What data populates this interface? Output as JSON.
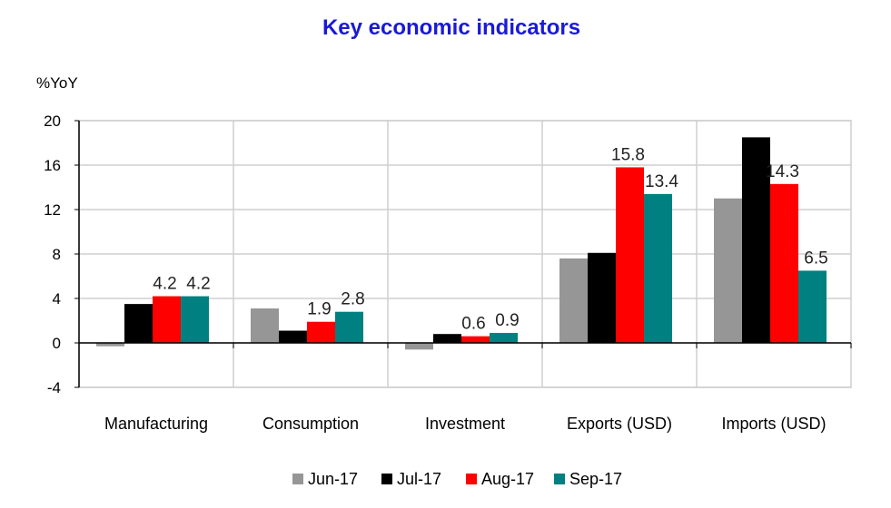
{
  "chart_data": {
    "type": "bar",
    "title": "Key economic indicators",
    "ylabel": "%YoY",
    "xlabel": "",
    "ylim": [
      -4,
      20
    ],
    "yticks": [
      -4,
      0,
      4,
      8,
      12,
      16,
      20
    ],
    "grid": true,
    "legend_position": "bottom",
    "categories": [
      "Manufacturing",
      "Consumption",
      "Investment",
      "Exports (USD)",
      "Imports (USD)"
    ],
    "series": [
      {
        "name": "Jun-17",
        "color": "#969696",
        "values": [
          -0.3,
          3.1,
          -0.6,
          7.6,
          13.0
        ],
        "labeled": false
      },
      {
        "name": "Jul-17",
        "color": "#000000",
        "values": [
          3.5,
          1.1,
          0.8,
          8.1,
          18.5
        ],
        "labeled": false
      },
      {
        "name": "Aug-17",
        "color": "#ff0000",
        "values": [
          4.2,
          1.9,
          0.6,
          15.8,
          14.3
        ],
        "labeled": true
      },
      {
        "name": "Sep-17",
        "color": "#008080",
        "values": [
          4.2,
          2.8,
          0.9,
          13.4,
          6.5
        ],
        "labeled": true
      }
    ],
    "title_color": "#1a1ad6"
  }
}
